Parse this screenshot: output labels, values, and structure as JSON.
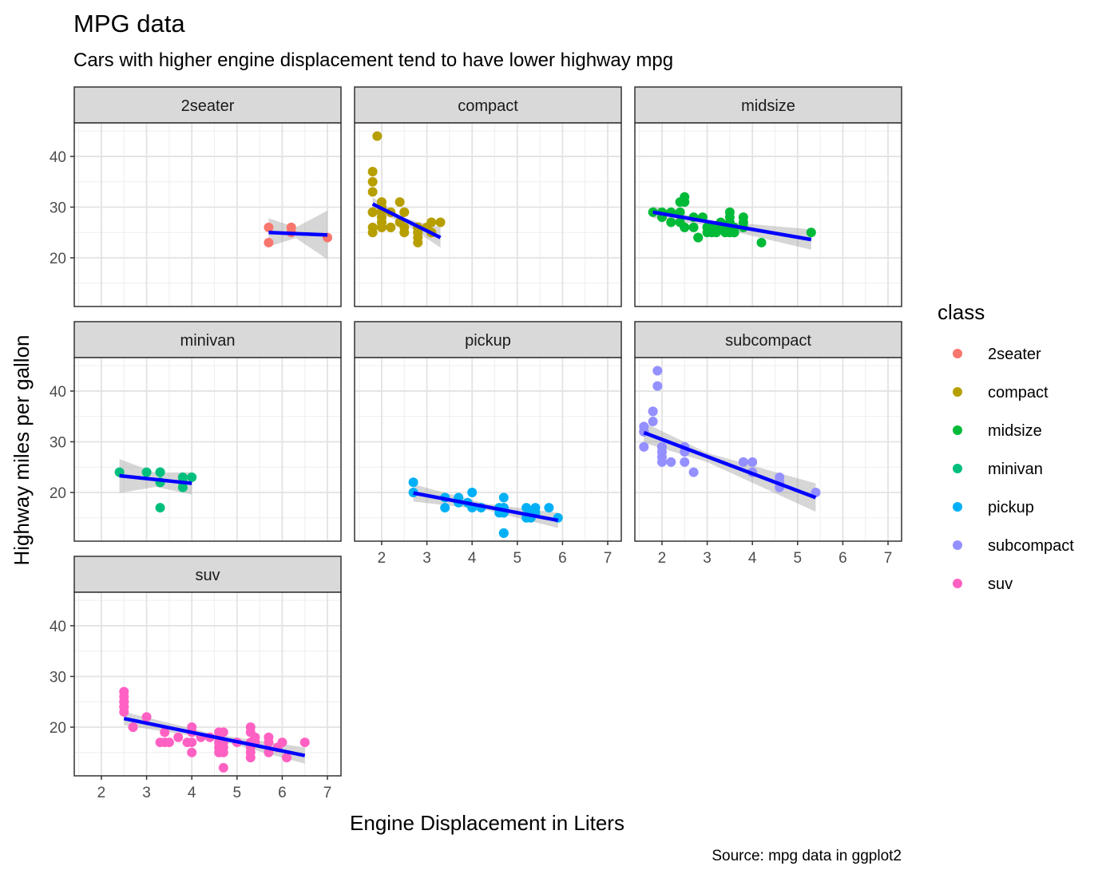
{
  "chart_data": {
    "type": "scatter",
    "title": "MPG data",
    "subtitle": "Cars with higher engine displacement tend to have lower highway mpg",
    "caption": "Source: mpg data in ggplot2",
    "xlabel": "Engine Displacement in Liters",
    "ylabel": "Highway miles per gallon",
    "xlim": [
      1.4,
      7.3
    ],
    "ylim": [
      10.4,
      46.6
    ],
    "x_ticks": [
      2,
      3,
      4,
      5,
      6,
      7
    ],
    "y_ticks": [
      20,
      30,
      40
    ],
    "grid": true,
    "legend": {
      "title": "class",
      "position": "right"
    },
    "trend_color": "#0000FF",
    "band_color": "#999999",
    "panels": [
      {
        "name": "2seater",
        "color": "#F8766D",
        "points": [
          [
            5.7,
            26
          ],
          [
            5.7,
            23
          ],
          [
            6.2,
            26
          ],
          [
            6.2,
            25
          ],
          [
            7.0,
            24
          ]
        ],
        "trend": {
          "x0": 5.7,
          "y0": 25.0,
          "x1": 7.0,
          "y1": 24.5
        },
        "band": [
          [
            5.7,
            27.8
          ],
          [
            6.3,
            26.0
          ],
          [
            7.0,
            29.3
          ],
          [
            7.0,
            19.7
          ],
          [
            6.3,
            23.9
          ],
          [
            5.7,
            22.2
          ]
        ]
      },
      {
        "name": "compact",
        "color": "#B79F00",
        "points": [
          [
            1.8,
            29
          ],
          [
            1.8,
            29
          ],
          [
            2.0,
            31
          ],
          [
            2.0,
            30
          ],
          [
            2.8,
            26
          ],
          [
            2.8,
            26
          ],
          [
            3.1,
            27
          ],
          [
            1.8,
            26
          ],
          [
            1.8,
            25
          ],
          [
            2.0,
            28
          ],
          [
            2.0,
            27
          ],
          [
            2.8,
            25
          ],
          [
            2.8,
            25
          ],
          [
            3.1,
            25
          ],
          [
            3.1,
            25
          ],
          [
            2.2,
            26
          ],
          [
            2.2,
            29
          ],
          [
            2.4,
            27
          ],
          [
            2.4,
            31
          ],
          [
            3.0,
            26
          ],
          [
            3.0,
            26
          ],
          [
            3.3,
            27
          ],
          [
            1.8,
            37
          ],
          [
            1.8,
            35
          ],
          [
            1.8,
            33
          ],
          [
            1.9,
            44
          ],
          [
            2.0,
            29
          ],
          [
            2.0,
            26
          ],
          [
            2.5,
            29
          ],
          [
            2.5,
            29
          ],
          [
            2.5,
            26
          ],
          [
            2.8,
            23
          ],
          [
            2.8,
            24
          ],
          [
            1.8,
            29
          ],
          [
            2.0,
            26
          ],
          [
            2.0,
            27
          ],
          [
            2.2,
            26
          ],
          [
            2.5,
            25
          ]
        ],
        "trend": {
          "x0": 1.8,
          "y0": 30.6,
          "x1": 3.3,
          "y1": 24.0
        },
        "band": [
          [
            1.8,
            31.9
          ],
          [
            2.5,
            27.8
          ],
          [
            3.3,
            26.0
          ],
          [
            3.3,
            22.0
          ],
          [
            2.5,
            26.8
          ],
          [
            1.8,
            29.3
          ]
        ]
      },
      {
        "name": "midsize",
        "color": "#00BA38",
        "points": [
          [
            1.8,
            29
          ],
          [
            2.0,
            28
          ],
          [
            2.0,
            29
          ],
          [
            2.2,
            27
          ],
          [
            2.4,
            31
          ],
          [
            2.4,
            29
          ],
          [
            2.5,
            32
          ],
          [
            2.5,
            31
          ],
          [
            2.5,
            26
          ],
          [
            2.7,
            26
          ],
          [
            3.0,
            26
          ],
          [
            3.0,
            26
          ],
          [
            3.3,
            27
          ],
          [
            3.3,
            26
          ],
          [
            3.3,
            26
          ],
          [
            3.5,
            29
          ],
          [
            3.5,
            28
          ],
          [
            3.8,
            28
          ],
          [
            3.8,
            27
          ],
          [
            2.2,
            29
          ],
          [
            2.4,
            27
          ],
          [
            2.5,
            26
          ],
          [
            2.7,
            28
          ],
          [
            2.8,
            24
          ],
          [
            3.0,
            25
          ],
          [
            3.1,
            25
          ],
          [
            3.1,
            26
          ],
          [
            3.5,
            26
          ],
          [
            3.5,
            27
          ],
          [
            3.8,
            26
          ],
          [
            4.2,
            23
          ],
          [
            5.3,
            25
          ],
          [
            3.5,
            25
          ],
          [
            3.5,
            26
          ],
          [
            3.2,
            25
          ],
          [
            2.9,
            28
          ],
          [
            2.8,
            24
          ],
          [
            3.6,
            25
          ],
          [
            3.4,
            25
          ],
          [
            3.6,
            25
          ],
          [
            3.6,
            26
          ]
        ],
        "trend": {
          "x0": 1.8,
          "y0": 29.0,
          "x1": 5.3,
          "y1": 23.6
        },
        "band": [
          [
            1.8,
            30.2
          ],
          [
            3.0,
            27.4
          ],
          [
            5.3,
            25.6
          ],
          [
            5.3,
            21.6
          ],
          [
            3.0,
            26.4
          ],
          [
            1.8,
            27.8
          ]
        ]
      },
      {
        "name": "minivan",
        "color": "#00BF7D",
        "points": [
          [
            2.4,
            24
          ],
          [
            3.0,
            24
          ],
          [
            3.3,
            22
          ],
          [
            3.3,
            22
          ],
          [
            3.3,
            24
          ],
          [
            3.3,
            24
          ],
          [
            3.3,
            17
          ],
          [
            3.8,
            22
          ],
          [
            3.8,
            21
          ],
          [
            3.8,
            23
          ],
          [
            4.0,
            23
          ]
        ],
        "trend": {
          "x0": 2.4,
          "y0": 23.3,
          "x1": 4.0,
          "y1": 21.8
        },
        "band": [
          [
            2.4,
            26.6
          ],
          [
            3.2,
            23.9
          ],
          [
            4.0,
            24.0
          ],
          [
            4.0,
            19.6
          ],
          [
            3.2,
            21.1
          ],
          [
            2.4,
            19.9
          ]
        ]
      },
      {
        "name": "pickup",
        "color": "#00B0F6",
        "points": [
          [
            2.7,
            20
          ],
          [
            2.7,
            22
          ],
          [
            3.4,
            17
          ],
          [
            3.4,
            19
          ],
          [
            3.7,
            19
          ],
          [
            3.7,
            18
          ],
          [
            3.9,
            18
          ],
          [
            4.0,
            20
          ],
          [
            4.0,
            17
          ],
          [
            4.2,
            17
          ],
          [
            4.7,
            17
          ],
          [
            4.7,
            16
          ],
          [
            4.7,
            16
          ],
          [
            4.7,
            17
          ],
          [
            4.7,
            19
          ],
          [
            4.7,
            12
          ],
          [
            4.6,
            17
          ],
          [
            4.6,
            16
          ],
          [
            5.2,
            17
          ],
          [
            5.2,
            15
          ],
          [
            5.4,
            17
          ],
          [
            5.4,
            16
          ],
          [
            5.7,
            17
          ],
          [
            5.9,
            15
          ],
          [
            4.7,
            12
          ],
          [
            5.3,
            15
          ],
          [
            5.3,
            16
          ]
        ],
        "trend": {
          "x0": 2.7,
          "y0": 19.9,
          "x1": 5.9,
          "y1": 14.5
        },
        "band": [
          [
            2.7,
            21.6
          ],
          [
            4.3,
            17.8
          ],
          [
            5.9,
            16.0
          ],
          [
            5.9,
            13.0
          ],
          [
            4.3,
            16.6
          ],
          [
            2.7,
            18.2
          ]
        ]
      },
      {
        "name": "subcompact",
        "color": "#9590FF",
        "points": [
          [
            1.6,
            33
          ],
          [
            1.6,
            32
          ],
          [
            1.6,
            32
          ],
          [
            1.6,
            29
          ],
          [
            1.6,
            32
          ],
          [
            1.8,
            34
          ],
          [
            1.8,
            36
          ],
          [
            1.8,
            36
          ],
          [
            1.9,
            44
          ],
          [
            1.9,
            41
          ],
          [
            2.0,
            29
          ],
          [
            2.0,
            26
          ],
          [
            2.0,
            28
          ],
          [
            2.0,
            29
          ],
          [
            2.0,
            27
          ],
          [
            2.2,
            26
          ],
          [
            2.5,
            26
          ],
          [
            2.5,
            28
          ],
          [
            2.5,
            29
          ],
          [
            2.7,
            24
          ],
          [
            3.8,
            26
          ],
          [
            3.8,
            26
          ],
          [
            4.0,
            26
          ],
          [
            4.0,
            24
          ],
          [
            4.6,
            21
          ],
          [
            4.6,
            22
          ],
          [
            4.6,
            23
          ],
          [
            5.4,
            20
          ]
        ],
        "trend": {
          "x0": 1.6,
          "y0": 31.8,
          "x1": 5.4,
          "y1": 19.0
        },
        "band": [
          [
            1.6,
            33.8
          ],
          [
            3.0,
            27.8
          ],
          [
            5.4,
            21.8
          ],
          [
            5.4,
            16.2
          ],
          [
            3.0,
            26.0
          ],
          [
            1.6,
            29.8
          ]
        ]
      },
      {
        "name": "suv",
        "color": "#FF61C3",
        "points": [
          [
            2.5,
            27
          ],
          [
            2.5,
            26
          ],
          [
            2.5,
            25
          ],
          [
            2.5,
            24
          ],
          [
            2.5,
            23
          ],
          [
            2.5,
            25
          ],
          [
            2.5,
            24
          ],
          [
            2.7,
            20
          ],
          [
            2.7,
            20
          ],
          [
            3.0,
            22
          ],
          [
            3.3,
            17
          ],
          [
            3.4,
            17
          ],
          [
            3.4,
            19
          ],
          [
            3.5,
            17
          ],
          [
            3.7,
            18
          ],
          [
            3.9,
            17
          ],
          [
            4.0,
            17
          ],
          [
            4.0,
            19
          ],
          [
            4.0,
            20
          ],
          [
            4.0,
            15
          ],
          [
            4.2,
            18
          ],
          [
            4.4,
            18
          ],
          [
            4.6,
            17
          ],
          [
            4.6,
            19
          ],
          [
            4.6,
            15
          ],
          [
            4.6,
            16
          ],
          [
            4.7,
            15
          ],
          [
            4.7,
            12
          ],
          [
            4.7,
            17
          ],
          [
            4.7,
            19
          ],
          [
            4.7,
            16
          ],
          [
            5.0,
            17
          ],
          [
            5.3,
            20
          ],
          [
            5.3,
            19
          ],
          [
            5.3,
            17
          ],
          [
            5.3,
            14
          ],
          [
            5.3,
            15
          ],
          [
            5.3,
            16
          ],
          [
            5.4,
            17
          ],
          [
            5.4,
            18
          ],
          [
            5.7,
            17
          ],
          [
            5.7,
            18
          ],
          [
            5.7,
            15
          ],
          [
            5.9,
            16
          ],
          [
            6.0,
            17
          ],
          [
            6.1,
            14
          ],
          [
            6.5,
            17
          ]
        ],
        "trend": {
          "x0": 2.5,
          "y0": 21.7,
          "x1": 6.5,
          "y1": 14.4
        },
        "band": [
          [
            2.5,
            23.0
          ],
          [
            4.5,
            18.6
          ],
          [
            6.5,
            16.0
          ],
          [
            6.5,
            12.8
          ],
          [
            4.5,
            17.6
          ],
          [
            2.5,
            20.4
          ]
        ]
      }
    ]
  }
}
